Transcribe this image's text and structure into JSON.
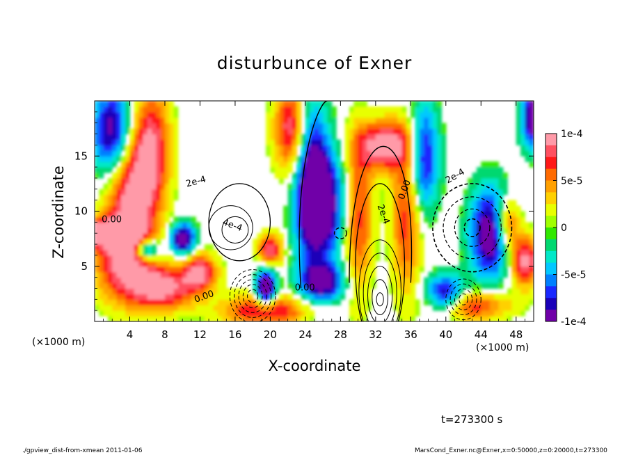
{
  "chart_data": {
    "type": "heatmap",
    "title": "disturbunce of Exner",
    "xlabel": "X-coordinate",
    "ylabel": "Z-coordinate",
    "x_unit": "(×1000 m)",
    "xlim": [
      0,
      50
    ],
    "ylim": [
      0,
      20
    ],
    "x_ticks": [
      4,
      8,
      12,
      16,
      20,
      24,
      28,
      32,
      36,
      40,
      44,
      48
    ],
    "y_ticks": [
      5,
      10,
      15
    ],
    "colorbar": {
      "min": -0.0001,
      "max": 0.0001,
      "tick_labels": [
        "1e-4",
        "5e-5",
        "0",
        "-5e-5",
        "-1e-4"
      ],
      "tick_values": [
        0.0001,
        5e-05,
        0,
        -5e-05,
        -0.0001
      ],
      "colors": [
        "#ff9aa8",
        "#ff5060",
        "#ff1818",
        "#ff6a00",
        "#ffa000",
        "#ffd000",
        "#e8ff00",
        "#a0ff00",
        "#30e800",
        "#00d870",
        "#00e8c8",
        "#00c8ff",
        "#0080ff",
        "#1a28ff",
        "#1a00b8",
        "#7000a8"
      ]
    },
    "contour_labels": [
      "0.00",
      "0.00",
      "0.00",
      "0.00",
      "2e-4",
      "4e-4",
      "2e-4",
      "2e-4"
    ],
    "grid": false
  },
  "time_label": "t=273300 s",
  "footer_left": "./gpview_dist-from-xmean   2011-01-06",
  "footer_right": "MarsCond_Exner.nc@Exner,x=0:50000,z=0:20000,t=273300"
}
